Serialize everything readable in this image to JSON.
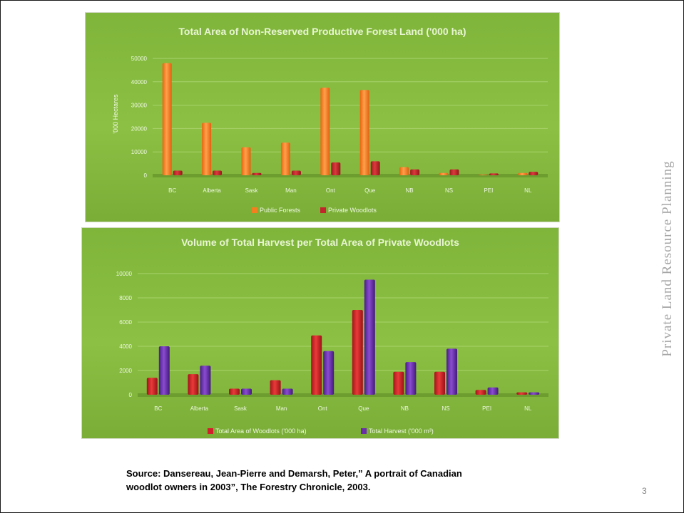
{
  "slide": {
    "side_label": "Private Land Resource Planning",
    "source_line1": "Source: Dansereau, Jean-Pierre and Demarsh, Peter,” A portrait of Canadian",
    "source_line2": "woodlot owners in 2003”, The Forestry Chronicle, 2003.",
    "page_number": "3"
  },
  "chart_data": [
    {
      "type": "bar",
      "title": "Total Area of Non-Reserved Productive Forest Land ('000 ha)",
      "ylabel": "'000 Hectares",
      "xlabel": "",
      "categories": [
        "BC",
        "Alberta",
        "Sask",
        "Man",
        "Ont",
        "Que",
        "NB",
        "NS",
        "PEI",
        "NL"
      ],
      "yticks": [
        "0",
        "10000",
        "20000",
        "30000",
        "40000",
        "50000"
      ],
      "ylim": [
        0,
        50000
      ],
      "grid": true,
      "legend_position": "bottom",
      "colors": {
        "background": "#83b83d",
        "series1": "#f47f1f",
        "series2": "#c0262c"
      },
      "series": [
        {
          "name": "Public Forests",
          "values": [
            48000,
            22500,
            12000,
            14000,
            37500,
            36500,
            3500,
            1000,
            300,
            1000
          ]
        },
        {
          "name": "Private Woodlots",
          "values": [
            2000,
            2000,
            1000,
            2000,
            5500,
            6000,
            2500,
            2500,
            800,
            1500
          ]
        }
      ]
    },
    {
      "type": "bar",
      "title": "Volume of Total Harvest per Total Area of Private Woodlots",
      "ylabel": "",
      "xlabel": "",
      "categories": [
        "BC",
        "Alberta",
        "Sask",
        "Man",
        "Ont",
        "Que",
        "NB",
        "NS",
        "PEI",
        "NL"
      ],
      "yticks": [
        "0",
        "2000",
        "4000",
        "6000",
        "8000",
        "10000"
      ],
      "ylim": [
        0,
        10000
      ],
      "grid": true,
      "legend_position": "bottom",
      "colors": {
        "background": "#83b83d",
        "series1": "#d0202a",
        "series2": "#6a2fa8"
      },
      "series": [
        {
          "name": "Total Area of Woodlots ('000 ha)",
          "values": [
            1400,
            1700,
            500,
            1200,
            4900,
            7000,
            1900,
            1900,
            400,
            200
          ]
        },
        {
          "name": "Total Harvest ('000 m³)",
          "values": [
            4000,
            2400,
            500,
            500,
            3600,
            9500,
            2700,
            3800,
            600,
            200
          ]
        }
      ]
    }
  ]
}
